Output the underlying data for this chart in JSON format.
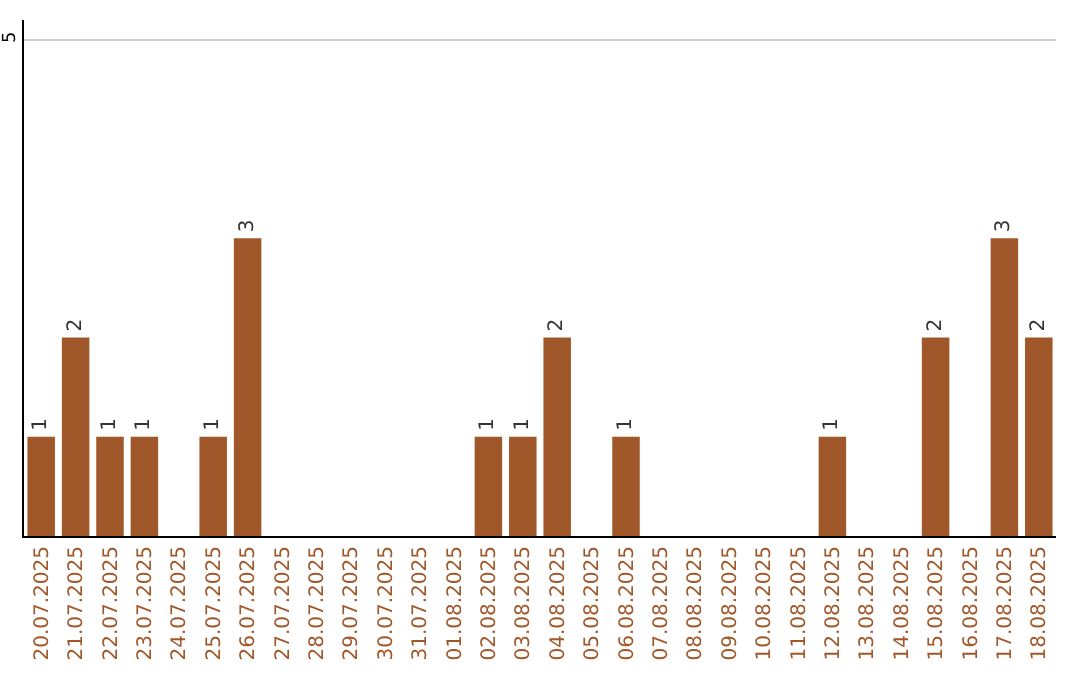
{
  "chart_data": {
    "type": "bar",
    "categories": [
      "20.07.2025",
      "21.07.2025",
      "22.07.2025",
      "23.07.2025",
      "24.07.2025",
      "25.07.2025",
      "26.07.2025",
      "27.07.2025",
      "28.07.2025",
      "29.07.2025",
      "30.07.2025",
      "31.07.2025",
      "01.08.2025",
      "02.08.2025",
      "03.08.2025",
      "04.08.2025",
      "05.08.2025",
      "06.08.2025",
      "07.08.2025",
      "08.08.2025",
      "09.08.2025",
      "10.08.2025",
      "11.08.2025",
      "12.08.2025",
      "13.08.2025",
      "14.08.2025",
      "15.08.2025",
      "16.08.2025",
      "17.08.2025",
      "18.08.2025"
    ],
    "values": [
      1,
      2,
      1,
      1,
      0,
      1,
      3,
      0,
      0,
      0,
      0,
      0,
      0,
      1,
      1,
      2,
      0,
      1,
      0,
      0,
      0,
      0,
      0,
      1,
      0,
      0,
      2,
      0,
      3,
      2
    ],
    "value_labels": [
      "1",
      "2",
      "1",
      "1",
      null,
      "1",
      "3",
      null,
      null,
      null,
      null,
      null,
      null,
      "1",
      "1",
      "2",
      null,
      "1",
      null,
      null,
      null,
      null,
      null,
      "1",
      null,
      null,
      "2",
      null,
      "3",
      "2"
    ],
    "color": "#a0582a",
    "ylim": [
      0,
      5.2
    ],
    "yticks": [
      5
    ],
    "grid": "y",
    "legend": false
  }
}
